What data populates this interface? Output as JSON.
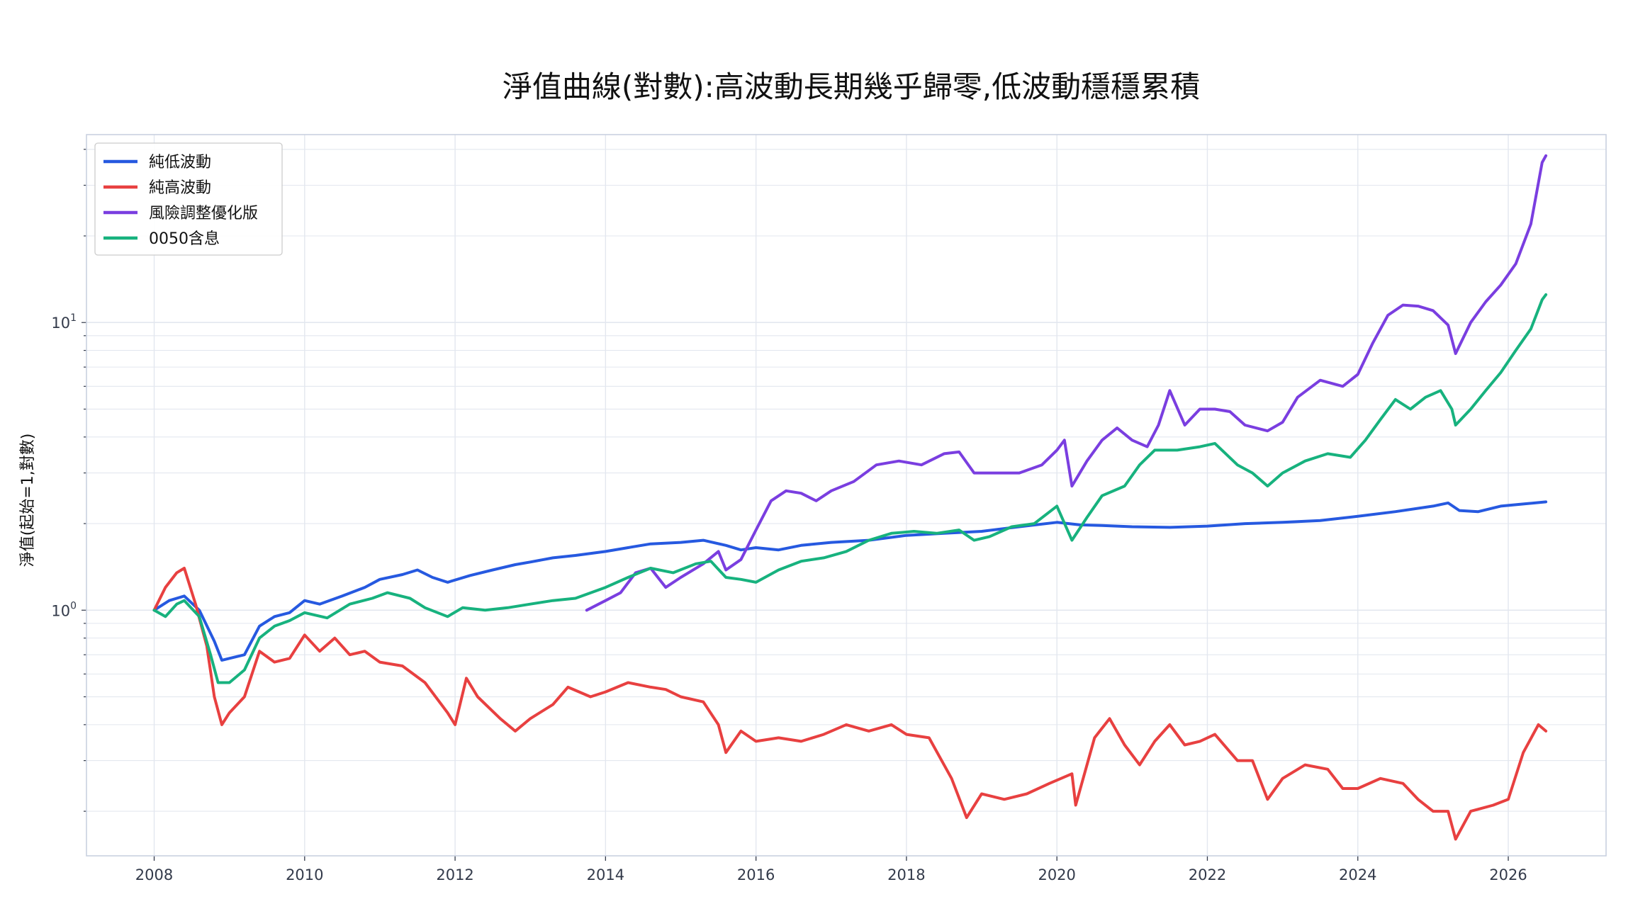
{
  "chart_data": {
    "type": "line",
    "title": "淨值曲線(對數):高波動長期幾乎歸零,低波動穩穩累積",
    "xlabel": "",
    "ylabel": "淨值(起始=1,對數)",
    "y_scale": "log",
    "ylim": [
      0.14,
      45
    ],
    "xlim": [
      2007.1,
      2027.3
    ],
    "x_ticks": [
      "2008",
      "2010",
      "2012",
      "2014",
      "2016",
      "2018",
      "2020",
      "2022",
      "2024",
      "2026"
    ],
    "y_tick_labels": [
      {
        "base": "10",
        "exp": "0",
        "value": 1
      },
      {
        "base": "10",
        "exp": "1",
        "value": 10
      }
    ],
    "grid": true,
    "legend_position": "top-left",
    "series": [
      {
        "name": "純低波動",
        "color": "#2659e0",
        "points": [
          [
            2008.0,
            1.0
          ],
          [
            2008.2,
            1.08
          ],
          [
            2008.4,
            1.12
          ],
          [
            2008.6,
            1.0
          ],
          [
            2008.8,
            0.78
          ],
          [
            2008.9,
            0.67
          ],
          [
            2009.0,
            0.68
          ],
          [
            2009.2,
            0.7
          ],
          [
            2009.4,
            0.88
          ],
          [
            2009.6,
            0.95
          ],
          [
            2009.8,
            0.98
          ],
          [
            2010.0,
            1.08
          ],
          [
            2010.2,
            1.05
          ],
          [
            2010.5,
            1.12
          ],
          [
            2010.8,
            1.2
          ],
          [
            2011.0,
            1.28
          ],
          [
            2011.3,
            1.33
          ],
          [
            2011.5,
            1.38
          ],
          [
            2011.7,
            1.3
          ],
          [
            2011.9,
            1.25
          ],
          [
            2012.2,
            1.32
          ],
          [
            2012.5,
            1.38
          ],
          [
            2012.8,
            1.44
          ],
          [
            2013.0,
            1.47
          ],
          [
            2013.3,
            1.52
          ],
          [
            2013.6,
            1.55
          ],
          [
            2014.0,
            1.6
          ],
          [
            2014.3,
            1.65
          ],
          [
            2014.6,
            1.7
          ],
          [
            2015.0,
            1.72
          ],
          [
            2015.3,
            1.75
          ],
          [
            2015.6,
            1.68
          ],
          [
            2015.8,
            1.62
          ],
          [
            2016.0,
            1.65
          ],
          [
            2016.3,
            1.62
          ],
          [
            2016.6,
            1.68
          ],
          [
            2017.0,
            1.72
          ],
          [
            2017.5,
            1.75
          ],
          [
            2018.0,
            1.82
          ],
          [
            2018.5,
            1.85
          ],
          [
            2019.0,
            1.88
          ],
          [
            2019.5,
            1.95
          ],
          [
            2020.0,
            2.02
          ],
          [
            2020.3,
            1.98
          ],
          [
            2020.6,
            1.97
          ],
          [
            2021.0,
            1.95
          ],
          [
            2021.5,
            1.94
          ],
          [
            2022.0,
            1.96
          ],
          [
            2022.5,
            2.0
          ],
          [
            2023.0,
            2.02
          ],
          [
            2023.5,
            2.05
          ],
          [
            2024.0,
            2.12
          ],
          [
            2024.5,
            2.2
          ],
          [
            2025.0,
            2.3
          ],
          [
            2025.2,
            2.36
          ],
          [
            2025.35,
            2.22
          ],
          [
            2025.6,
            2.2
          ],
          [
            2025.9,
            2.3
          ],
          [
            2026.2,
            2.34
          ],
          [
            2026.5,
            2.38
          ]
        ]
      },
      {
        "name": "純高波動",
        "color": "#e84040",
        "points": [
          [
            2008.0,
            1.0
          ],
          [
            2008.15,
            1.2
          ],
          [
            2008.3,
            1.35
          ],
          [
            2008.4,
            1.4
          ],
          [
            2008.55,
            1.05
          ],
          [
            2008.7,
            0.75
          ],
          [
            2008.8,
            0.5
          ],
          [
            2008.9,
            0.4
          ],
          [
            2009.0,
            0.44
          ],
          [
            2009.2,
            0.5
          ],
          [
            2009.4,
            0.72
          ],
          [
            2009.6,
            0.66
          ],
          [
            2009.8,
            0.68
          ],
          [
            2010.0,
            0.82
          ],
          [
            2010.2,
            0.72
          ],
          [
            2010.4,
            0.8
          ],
          [
            2010.6,
            0.7
          ],
          [
            2010.8,
            0.72
          ],
          [
            2011.0,
            0.66
          ],
          [
            2011.3,
            0.64
          ],
          [
            2011.6,
            0.56
          ],
          [
            2011.9,
            0.44
          ],
          [
            2012.0,
            0.4
          ],
          [
            2012.15,
            0.58
          ],
          [
            2012.3,
            0.5
          ],
          [
            2012.6,
            0.42
          ],
          [
            2012.8,
            0.38
          ],
          [
            2013.0,
            0.42
          ],
          [
            2013.3,
            0.47
          ],
          [
            2013.5,
            0.54
          ],
          [
            2013.8,
            0.5
          ],
          [
            2014.0,
            0.52
          ],
          [
            2014.3,
            0.56
          ],
          [
            2014.6,
            0.54
          ],
          [
            2014.8,
            0.53
          ],
          [
            2015.0,
            0.5
          ],
          [
            2015.3,
            0.48
          ],
          [
            2015.5,
            0.4
          ],
          [
            2015.6,
            0.32
          ],
          [
            2015.8,
            0.38
          ],
          [
            2016.0,
            0.35
          ],
          [
            2016.3,
            0.36
          ],
          [
            2016.6,
            0.35
          ],
          [
            2016.9,
            0.37
          ],
          [
            2017.2,
            0.4
          ],
          [
            2017.5,
            0.38
          ],
          [
            2017.8,
            0.4
          ],
          [
            2018.0,
            0.37
          ],
          [
            2018.3,
            0.36
          ],
          [
            2018.6,
            0.26
          ],
          [
            2018.8,
            0.19
          ],
          [
            2019.0,
            0.23
          ],
          [
            2019.3,
            0.22
          ],
          [
            2019.6,
            0.23
          ],
          [
            2019.9,
            0.25
          ],
          [
            2020.2,
            0.27
          ],
          [
            2020.25,
            0.21
          ],
          [
            2020.5,
            0.36
          ],
          [
            2020.7,
            0.42
          ],
          [
            2020.9,
            0.34
          ],
          [
            2021.1,
            0.29
          ],
          [
            2021.3,
            0.35
          ],
          [
            2021.5,
            0.4
          ],
          [
            2021.7,
            0.34
          ],
          [
            2021.9,
            0.35
          ],
          [
            2022.1,
            0.37
          ],
          [
            2022.4,
            0.3
          ],
          [
            2022.6,
            0.3
          ],
          [
            2022.8,
            0.22
          ],
          [
            2023.0,
            0.26
          ],
          [
            2023.3,
            0.29
          ],
          [
            2023.6,
            0.28
          ],
          [
            2023.8,
            0.24
          ],
          [
            2024.0,
            0.24
          ],
          [
            2024.3,
            0.26
          ],
          [
            2024.6,
            0.25
          ],
          [
            2024.8,
            0.22
          ],
          [
            2025.0,
            0.2
          ],
          [
            2025.2,
            0.2
          ],
          [
            2025.3,
            0.16
          ],
          [
            2025.5,
            0.2
          ],
          [
            2025.8,
            0.21
          ],
          [
            2026.0,
            0.22
          ],
          [
            2026.2,
            0.32
          ],
          [
            2026.4,
            0.4
          ],
          [
            2026.5,
            0.38
          ]
        ]
      },
      {
        "name": "風險調整優化版",
        "color": "#7a3ee0",
        "points": [
          [
            2013.75,
            1.0
          ],
          [
            2014.0,
            1.08
          ],
          [
            2014.2,
            1.15
          ],
          [
            2014.4,
            1.35
          ],
          [
            2014.6,
            1.4
          ],
          [
            2014.8,
            1.2
          ],
          [
            2015.0,
            1.3
          ],
          [
            2015.3,
            1.45
          ],
          [
            2015.5,
            1.6
          ],
          [
            2015.6,
            1.38
          ],
          [
            2015.8,
            1.5
          ],
          [
            2016.0,
            1.9
          ],
          [
            2016.2,
            2.4
          ],
          [
            2016.4,
            2.6
          ],
          [
            2016.6,
            2.55
          ],
          [
            2016.8,
            2.4
          ],
          [
            2017.0,
            2.6
          ],
          [
            2017.3,
            2.8
          ],
          [
            2017.6,
            3.2
          ],
          [
            2017.9,
            3.3
          ],
          [
            2018.2,
            3.2
          ],
          [
            2018.5,
            3.5
          ],
          [
            2018.7,
            3.55
          ],
          [
            2018.9,
            3.0
          ],
          [
            2019.2,
            3.0
          ],
          [
            2019.5,
            3.0
          ],
          [
            2019.8,
            3.2
          ],
          [
            2020.0,
            3.6
          ],
          [
            2020.1,
            3.9
          ],
          [
            2020.2,
            2.7
          ],
          [
            2020.4,
            3.3
          ],
          [
            2020.6,
            3.9
          ],
          [
            2020.8,
            4.3
          ],
          [
            2021.0,
            3.9
          ],
          [
            2021.2,
            3.7
          ],
          [
            2021.35,
            4.4
          ],
          [
            2021.5,
            5.8
          ],
          [
            2021.7,
            4.4
          ],
          [
            2021.9,
            5.0
          ],
          [
            2022.1,
            5.0
          ],
          [
            2022.3,
            4.9
          ],
          [
            2022.5,
            4.4
          ],
          [
            2022.8,
            4.2
          ],
          [
            2023.0,
            4.5
          ],
          [
            2023.2,
            5.5
          ],
          [
            2023.5,
            6.3
          ],
          [
            2023.8,
            6.0
          ],
          [
            2024.0,
            6.6
          ],
          [
            2024.2,
            8.5
          ],
          [
            2024.4,
            10.6
          ],
          [
            2024.6,
            11.5
          ],
          [
            2024.8,
            11.4
          ],
          [
            2025.0,
            11.0
          ],
          [
            2025.2,
            9.8
          ],
          [
            2025.3,
            7.8
          ],
          [
            2025.5,
            10.0
          ],
          [
            2025.7,
            11.8
          ],
          [
            2025.9,
            13.5
          ],
          [
            2026.1,
            16.0
          ],
          [
            2026.3,
            22.0
          ],
          [
            2026.45,
            36.0
          ],
          [
            2026.5,
            38.0
          ]
        ]
      },
      {
        "name": "0050含息",
        "color": "#17b27e",
        "points": [
          [
            2008.0,
            1.0
          ],
          [
            2008.15,
            0.95
          ],
          [
            2008.3,
            1.05
          ],
          [
            2008.4,
            1.08
          ],
          [
            2008.6,
            0.95
          ],
          [
            2008.75,
            0.7
          ],
          [
            2008.85,
            0.56
          ],
          [
            2009.0,
            0.56
          ],
          [
            2009.2,
            0.62
          ],
          [
            2009.4,
            0.8
          ],
          [
            2009.6,
            0.88
          ],
          [
            2009.8,
            0.92
          ],
          [
            2010.0,
            0.98
          ],
          [
            2010.3,
            0.94
          ],
          [
            2010.6,
            1.05
          ],
          [
            2010.9,
            1.1
          ],
          [
            2011.1,
            1.15
          ],
          [
            2011.4,
            1.1
          ],
          [
            2011.6,
            1.02
          ],
          [
            2011.9,
            0.95
          ],
          [
            2012.1,
            1.02
          ],
          [
            2012.4,
            1.0
          ],
          [
            2012.7,
            1.02
          ],
          [
            2013.0,
            1.05
          ],
          [
            2013.3,
            1.08
          ],
          [
            2013.6,
            1.1
          ],
          [
            2014.0,
            1.2
          ],
          [
            2014.3,
            1.3
          ],
          [
            2014.6,
            1.4
          ],
          [
            2014.9,
            1.35
          ],
          [
            2015.2,
            1.45
          ],
          [
            2015.4,
            1.48
          ],
          [
            2015.6,
            1.3
          ],
          [
            2015.8,
            1.28
          ],
          [
            2016.0,
            1.25
          ],
          [
            2016.3,
            1.38
          ],
          [
            2016.6,
            1.48
          ],
          [
            2016.9,
            1.52
          ],
          [
            2017.2,
            1.6
          ],
          [
            2017.5,
            1.75
          ],
          [
            2017.8,
            1.85
          ],
          [
            2018.1,
            1.88
          ],
          [
            2018.4,
            1.85
          ],
          [
            2018.7,
            1.9
          ],
          [
            2018.9,
            1.75
          ],
          [
            2019.1,
            1.8
          ],
          [
            2019.4,
            1.95
          ],
          [
            2019.7,
            2.0
          ],
          [
            2020.0,
            2.3
          ],
          [
            2020.2,
            1.75
          ],
          [
            2020.4,
            2.1
          ],
          [
            2020.6,
            2.5
          ],
          [
            2020.9,
            2.7
          ],
          [
            2021.1,
            3.2
          ],
          [
            2021.3,
            3.6
          ],
          [
            2021.6,
            3.6
          ],
          [
            2021.9,
            3.7
          ],
          [
            2022.1,
            3.8
          ],
          [
            2022.4,
            3.2
          ],
          [
            2022.6,
            3.0
          ],
          [
            2022.8,
            2.7
          ],
          [
            2023.0,
            3.0
          ],
          [
            2023.3,
            3.3
          ],
          [
            2023.6,
            3.5
          ],
          [
            2023.9,
            3.4
          ],
          [
            2024.1,
            3.9
          ],
          [
            2024.3,
            4.6
          ],
          [
            2024.5,
            5.4
          ],
          [
            2024.7,
            5.0
          ],
          [
            2024.9,
            5.5
          ],
          [
            2025.1,
            5.8
          ],
          [
            2025.25,
            5.0
          ],
          [
            2025.3,
            4.4
          ],
          [
            2025.5,
            5.0
          ],
          [
            2025.7,
            5.8
          ],
          [
            2025.9,
            6.7
          ],
          [
            2026.1,
            8.0
          ],
          [
            2026.3,
            9.5
          ],
          [
            2026.45,
            12.0
          ],
          [
            2026.5,
            12.5
          ]
        ]
      }
    ]
  }
}
